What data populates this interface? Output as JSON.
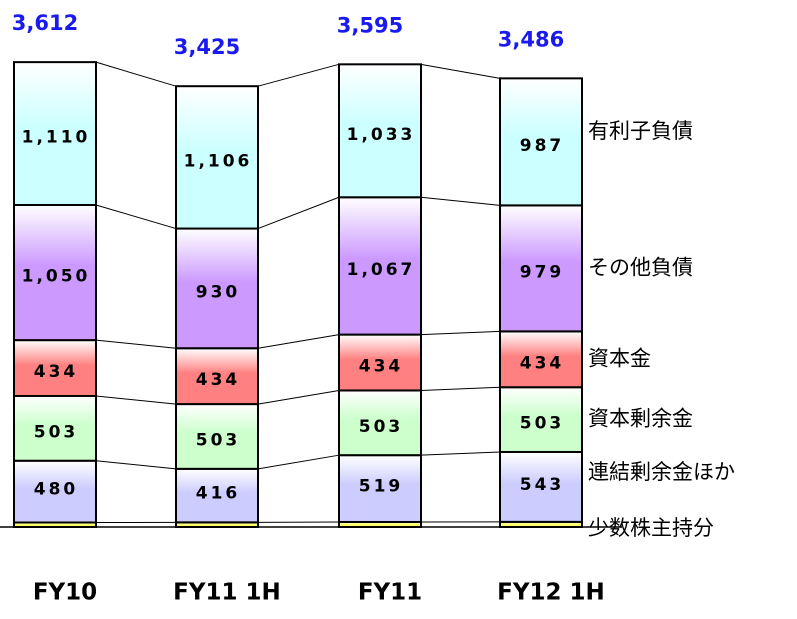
{
  "chart_data": {
    "type": "stacked_bar",
    "categories": [
      "FY10",
      "FY11 1H",
      "FY11",
      "FY12 1H"
    ],
    "series": [
      {
        "name": "少数株主持分",
        "color": "#ffff66",
        "values": [
          35,
          36,
          39,
          40
        ]
      },
      {
        "name": "連結剰余金ほか",
        "color": "#ccccff",
        "values": [
          480,
          416,
          519,
          543
        ]
      },
      {
        "name": "資本剰余金",
        "color": "#ccffcc",
        "values": [
          503,
          503,
          503,
          503
        ]
      },
      {
        "name": "資本金",
        "color": "#ff8080",
        "values": [
          434,
          434,
          434,
          434
        ]
      },
      {
        "name": "その他負債",
        "color": "#cc99ff",
        "values": [
          1050,
          930,
          1067,
          979
        ],
        "value_labels": [
          "1,050",
          "930",
          "1,067",
          "979"
        ]
      },
      {
        "name": "有利子負債",
        "color": "#ccffff",
        "values": [
          1110,
          1106,
          1033,
          987
        ],
        "value_labels": [
          "1,110",
          "1,106",
          "1,033",
          "987"
        ]
      }
    ],
    "totals": [
      3612,
      3425,
      3595,
      3486
    ],
    "total_labels": [
      "3,612",
      "3,425",
      "3,595",
      "3,486"
    ]
  }
}
